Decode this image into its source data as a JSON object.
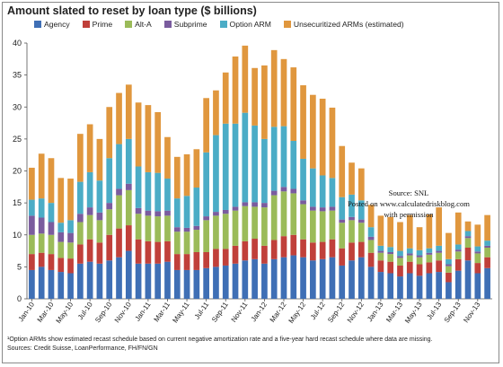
{
  "chart_data": {
    "type": "bar",
    "stacked": true,
    "title": "Amount slated to reset by loan type ($ billions)",
    "ylim": [
      0,
      40
    ],
    "yticks": [
      0,
      5,
      10,
      15,
      20,
      25,
      30,
      35,
      40
    ],
    "grid": false,
    "legend_position": "top",
    "categories": [
      "Jan-10",
      "Feb-10",
      "Mar-10",
      "Apr-10",
      "May-10",
      "Jun-10",
      "Jul-10",
      "Aug-10",
      "Sep-10",
      "Oct-10",
      "Nov-10",
      "Dec-10",
      "Jan-11",
      "Feb-11",
      "Mar-11",
      "Apr-11",
      "May-11",
      "Jun-11",
      "Jul-11",
      "Aug-11",
      "Sep-11",
      "Oct-11",
      "Nov-11",
      "Dec-11",
      "Jan-12",
      "Feb-12",
      "Mar-12",
      "Apr-12",
      "May-12",
      "Jun-12",
      "Jul-12",
      "Aug-12",
      "Sep-12",
      "Oct-12",
      "Nov-12",
      "Dec-12",
      "Jan-13",
      "Feb-13",
      "Mar-13",
      "Apr-13",
      "May-13",
      "Jun-13",
      "Jul-13",
      "Aug-13",
      "Sep-13",
      "Oct-13",
      "Nov-13",
      "Dec-13"
    ],
    "xtick_labels": [
      "Jan-10",
      "Mar-10",
      "May-10",
      "Jul-10",
      "Sep-10",
      "Nov-10",
      "Jan-11",
      "Mar-11",
      "May-11",
      "Jul-11",
      "Sep-11",
      "Nov-11",
      "Jan-12",
      "Mar-12",
      "May-12",
      "Jul-12",
      "Sep-12",
      "Nov-12",
      "Jan-13",
      "Mar-13",
      "May-13",
      "Jul-13",
      "Sep-13",
      "Nov-13"
    ],
    "series": [
      {
        "name": "Agency",
        "color": "#3f6fb5",
        "values": [
          4.5,
          5.0,
          4.5,
          4.2,
          4.0,
          5.5,
          5.8,
          5.5,
          6.0,
          6.5,
          7.5,
          5.5,
          5.5,
          5.5,
          5.8,
          4.5,
          4.5,
          4.5,
          4.8,
          5.0,
          5.2,
          5.5,
          6.0,
          6.2,
          5.5,
          6.2,
          6.5,
          6.8,
          6.5,
          6.0,
          6.2,
          6.5,
          5.2,
          6.0,
          6.5,
          5.0,
          4.2,
          4.0,
          3.5,
          4.0,
          3.6,
          4.0,
          4.2,
          2.6,
          4.4,
          6.0,
          4.0,
          4.8
        ]
      },
      {
        "name": "Prime",
        "color": "#c0403a",
        "values": [
          2.5,
          2.2,
          2.5,
          2.2,
          2.3,
          3.0,
          3.5,
          3.3,
          4.0,
          4.5,
          4.0,
          3.8,
          3.5,
          3.4,
          3.2,
          2.5,
          2.5,
          2.8,
          2.5,
          2.8,
          2.6,
          2.8,
          3.0,
          3.2,
          2.8,
          3.0,
          3.3,
          3.2,
          2.8,
          2.8,
          2.7,
          2.8,
          2.7,
          2.8,
          2.4,
          2.2,
          1.8,
          1.8,
          1.7,
          1.8,
          1.8,
          1.7,
          1.8,
          1.5,
          1.8,
          2.0,
          1.6,
          1.7
        ]
      },
      {
        "name": "Alt-A",
        "color": "#9bbb59",
        "values": [
          3.0,
          3.0,
          3.0,
          2.5,
          2.5,
          3.5,
          3.8,
          3.5,
          4.0,
          5.2,
          5.5,
          4.0,
          4.0,
          4.0,
          4.0,
          3.5,
          3.5,
          3.5,
          5.0,
          5.2,
          5.5,
          5.5,
          5.5,
          5.0,
          6.0,
          7.0,
          7.0,
          6.5,
          5.5,
          5.0,
          4.8,
          4.5,
          4.0,
          3.5,
          3.0,
          2.0,
          1.2,
          1.2,
          1.2,
          1.0,
          1.1,
          1.2,
          1.2,
          1.0,
          1.2,
          1.5,
          1.5,
          1.5
        ]
      },
      {
        "name": "Subprime",
        "color": "#7a5c9e",
        "values": [
          3.0,
          2.5,
          2.0,
          1.5,
          1.5,
          1.3,
          1.2,
          1.2,
          1.0,
          1.0,
          1.0,
          0.9,
          0.8,
          0.8,
          0.8,
          0.7,
          0.6,
          0.6,
          0.6,
          0.6,
          0.6,
          0.6,
          0.6,
          0.7,
          0.7,
          0.7,
          0.7,
          0.7,
          0.6,
          0.6,
          0.6,
          0.6,
          0.5,
          0.5,
          0.5,
          0.5,
          0.3,
          0.3,
          0.3,
          0.3,
          0.3,
          0.3,
          0.3,
          0.3,
          0.3,
          0.3,
          0.3,
          0.3
        ]
      },
      {
        "name": "Option ARM",
        "color": "#4bacc6",
        "values": [
          2.5,
          3.0,
          3.0,
          1.5,
          2.0,
          5.0,
          5.5,
          5.0,
          7.0,
          7.0,
          7.0,
          6.5,
          6.0,
          6.0,
          5.0,
          4.5,
          5.0,
          6.0,
          10.0,
          12.0,
          13.5,
          13.0,
          14.0,
          12.0,
          10.0,
          10.0,
          9.5,
          7.5,
          6.5,
          6.0,
          5.0,
          4.5,
          3.5,
          3.5,
          3.0,
          1.5,
          0.8,
          0.8,
          0.8,
          0.8,
          0.8,
          0.7,
          0.8,
          0.8,
          0.8,
          0.8,
          0.8,
          0.8
        ]
      },
      {
        "name": "Unsecuritized ARMs (estimated)",
        "color": "#e0973e",
        "values": [
          5.0,
          7.0,
          7.0,
          7.0,
          6.5,
          7.5,
          7.5,
          6.5,
          8.0,
          8.0,
          8.5,
          10.0,
          10.5,
          9.5,
          6.5,
          6.5,
          6.5,
          6.0,
          8.5,
          7.0,
          8.0,
          10.5,
          10.5,
          9.0,
          11.5,
          12.0,
          10.5,
          11.5,
          11.5,
          11.5,
          12.0,
          11.0,
          8.0,
          5.0,
          5.0,
          3.5,
          4.7,
          4.7,
          4.5,
          5.2,
          3.6,
          5.3,
          6.0,
          4.1,
          5.0,
          1.5,
          3.4,
          4.0
        ]
      }
    ]
  },
  "legend_labels": [
    "Agency",
    "Prime",
    "Alt-A",
    "Subprime",
    "Option ARM",
    "Unsecuritized ARMs (estimated)"
  ],
  "footnote_1": "¹Option ARMs show estimated recast schedule based on current negative amortization rate and a five-year hard recast schedule where data are missing.",
  "footnote_2": "Sources: Credit Suisse, LoanPerformance, FH/FN/GN",
  "credit": {
    "line1": "Source: SNL",
    "line2": "Posted on www.calculatedriskblog.com",
    "line3": "with permission"
  }
}
